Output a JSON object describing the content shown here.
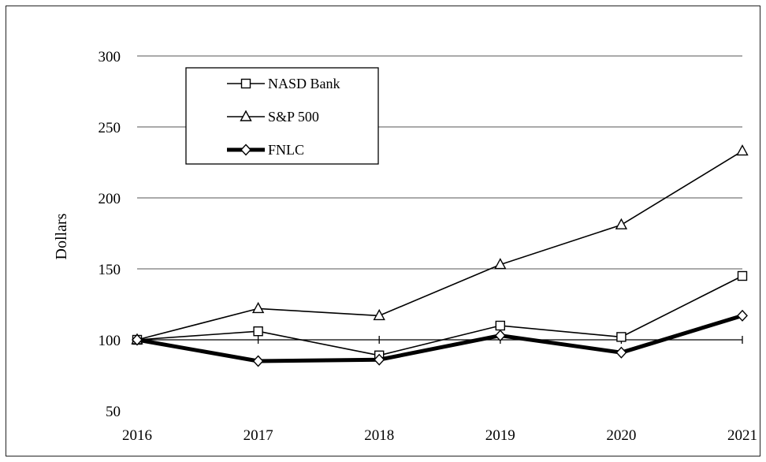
{
  "chart_data": {
    "type": "line",
    "title": "",
    "xlabel": "",
    "ylabel": "Dollars",
    "x": [
      "2016",
      "2017",
      "2018",
      "2019",
      "2020",
      "2021"
    ],
    "yticks": [
      "50",
      "100",
      "150",
      "200",
      "250",
      "300"
    ],
    "ylim": [
      50,
      300
    ],
    "grid": "horizontal",
    "legend_position": "top-left",
    "series": [
      {
        "name": "NASD Bank",
        "marker": "square",
        "color": "#000000",
        "values": [
          100,
          106,
          89,
          110,
          102,
          145
        ]
      },
      {
        "name": "S&P 500",
        "marker": "triangle",
        "color": "#000000",
        "values": [
          100,
          122,
          117,
          153,
          181,
          233
        ]
      },
      {
        "name": "FNLC",
        "marker": "diamond",
        "color": "#000000",
        "bold": true,
        "values": [
          100,
          85,
          86,
          103,
          91,
          117
        ]
      }
    ]
  }
}
